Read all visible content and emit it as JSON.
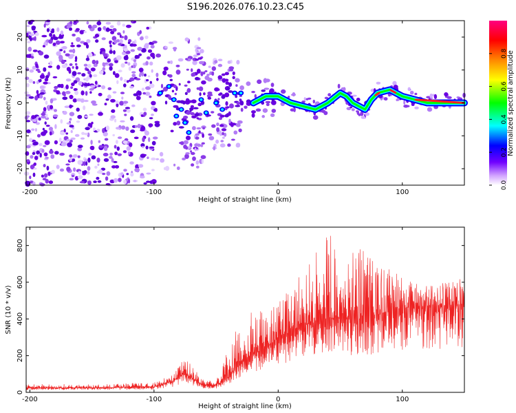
{
  "title": "S196.2026.076.10.23.C45",
  "colors": {
    "snr_line": "#ee2222",
    "scatter": "#6a00e0",
    "colormap": [
      "#ffffff",
      "#d8a8ff",
      "#7000e0",
      "#0000ff",
      "#00ffff",
      "#00ff00",
      "#ffff00",
      "#ff8800",
      "#ff0000",
      "#ff0080"
    ]
  },
  "chart_data": [
    {
      "type": "heatmap",
      "title": "S196.2026.076.10.23.C45",
      "xlabel": "Height of straight line (km)",
      "ylabel": "Frequency (Hz)",
      "xlim": [
        -203,
        150
      ],
      "ylim": [
        -25,
        25
      ],
      "xticks": [
        -200,
        -100,
        0,
        100
      ],
      "xtick_labels": [
        "-200",
        "-100",
        "0",
        "100"
      ],
      "yticks": [
        -20,
        -10,
        0,
        10,
        20
      ],
      "ytick_labels": [
        "-20",
        "-10",
        "0",
        "10",
        "20"
      ],
      "colorbar": {
        "label": "Normalized spectral amplitude",
        "range": [
          0,
          1
        ],
        "ticks": [
          0.0,
          0.2,
          0.4,
          0.6,
          0.8
        ],
        "tick_labels": [
          "0.0",
          "0.2",
          "0.4",
          "0.6",
          "0.8"
        ]
      },
      "ridge": {
        "x": [
          -20,
          -10,
          0,
          10,
          20,
          30,
          40,
          50,
          55,
          60,
          65,
          70,
          75,
          80,
          90,
          100,
          110,
          120,
          130,
          150
        ],
        "y": [
          0,
          2,
          2,
          0,
          -1,
          -2,
          0,
          3,
          2,
          0,
          -1,
          -2,
          1,
          3,
          4,
          2,
          1,
          0,
          0,
          0
        ]
      }
    },
    {
      "type": "line",
      "xlabel": "Height of straight line (km)",
      "ylabel": "SNR (10 * v/v)",
      "xlim": [
        -203,
        150
      ],
      "ylim": [
        0,
        900
      ],
      "xticks": [
        -200,
        -100,
        0,
        100
      ],
      "xtick_labels": [
        "-200",
        "-100",
        "0",
        "100"
      ],
      "yticks": [
        0,
        200,
        400,
        600,
        800
      ],
      "ytick_labels": [
        "0",
        "200",
        "400",
        "600",
        "800"
      ],
      "series": [
        {
          "name": "SNR",
          "x": [
            -203,
            -150,
            -100,
            -85,
            -75,
            -70,
            -60,
            -50,
            -40,
            -30,
            -20,
            -10,
            0,
            10,
            20,
            30,
            40,
            50,
            60,
            70,
            80,
            90,
            100,
            120,
            150
          ],
          "base": [
            25,
            25,
            30,
            60,
            110,
            80,
            40,
            40,
            80,
            170,
            210,
            240,
            300,
            330,
            370,
            380,
            400,
            410,
            400,
            400,
            420,
            450,
            460,
            470,
            480
          ],
          "peak": [
            45,
            45,
            55,
            100,
            195,
            150,
            70,
            70,
            240,
            440,
            460,
            430,
            500,
            560,
            730,
            780,
            860,
            850,
            860,
            830,
            780,
            700,
            620,
            580,
            650
          ]
        }
      ]
    }
  ]
}
